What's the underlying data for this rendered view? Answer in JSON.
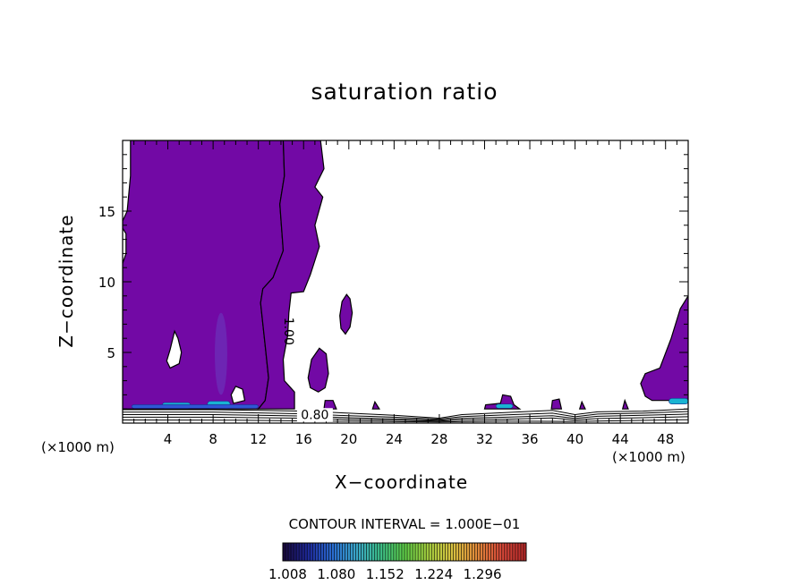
{
  "chart_data": {
    "type": "contour",
    "title": "saturation ratio",
    "xlabel": "X−coordinate",
    "ylabel": "Z−coordinate",
    "x_unit_left": "(×1000 m)",
    "x_unit_right": "(×1000 m)",
    "xlim": [
      0,
      50
    ],
    "ylim": [
      0,
      20
    ],
    "x_ticks": [
      4,
      8,
      12,
      16,
      20,
      24,
      28,
      32,
      36,
      40,
      44,
      48
    ],
    "x_tick_labels": [
      "4",
      "8",
      "12",
      "16",
      "20",
      "24",
      "28",
      "32",
      "36",
      "40",
      "44",
      "48"
    ],
    "y_ticks": [
      5,
      10,
      15
    ],
    "y_tick_labels": [
      "5",
      "10",
      "15"
    ],
    "contour_labels": [
      {
        "text": "1.00",
        "x": 14.3,
        "z": 6.5,
        "rotate": 90
      },
      {
        "text": "0.80",
        "x": 17.0,
        "z": 0.3,
        "rotate": 0
      }
    ],
    "contour_interval_text": "CONTOUR INTERVAL = 1.000E−01",
    "colorbar": {
      "min": 1.0,
      "max": 1.32,
      "tick_labels": [
        "1.008",
        "1.080",
        "1.152",
        "1.224",
        "1.296"
      ],
      "colors": [
        "#1a0a40",
        "#1f2a9c",
        "#2a6cd0",
        "#3aa6c8",
        "#3cc08a",
        "#5fcf48",
        "#a8d040",
        "#d8c040",
        "#e08a3a",
        "#d84a3a",
        "#b82a2a"
      ]
    },
    "fill_colors": {
      "supersaturated": "#7209a5",
      "low_level_peak": "#19b4d2",
      "low_level_mid": "#2f57d4",
      "background": "#ffffff"
    },
    "regions": [
      {
        "name": "left-column",
        "points": [
          [
            0.7,
            20
          ],
          [
            14.2,
            20
          ],
          [
            14.3,
            17.5
          ],
          [
            13.9,
            15.5
          ],
          [
            14.2,
            12.2
          ],
          [
            13.3,
            10.3
          ],
          [
            12.4,
            9.5
          ],
          [
            12.2,
            8.5
          ],
          [
            12.6,
            5.5
          ],
          [
            12.9,
            3.2
          ],
          [
            12.6,
            1.6
          ],
          [
            12.0,
            1.0
          ],
          [
            0,
            1.0
          ],
          [
            0,
            14.3
          ],
          [
            0.4,
            15.0
          ],
          [
            0.7,
            17.5
          ]
        ]
      },
      {
        "name": "right-of-column",
        "points": [
          [
            14.2,
            20
          ],
          [
            14.3,
            17.5
          ],
          [
            13.9,
            15.5
          ],
          [
            14.2,
            12.2
          ],
          [
            13.3,
            10.3
          ],
          [
            12.4,
            9.5
          ],
          [
            12.2,
            8.5
          ],
          [
            12.6,
            5.5
          ],
          [
            12.9,
            3.2
          ],
          [
            12.6,
            1.6
          ],
          [
            12.0,
            1.0
          ],
          [
            15.2,
            1.0
          ],
          [
            15.2,
            2.2
          ],
          [
            14.3,
            3.0
          ],
          [
            14.2,
            4.5
          ],
          [
            14.6,
            6.2
          ],
          [
            14.7,
            7.8
          ],
          [
            14.9,
            9.2
          ],
          [
            16.0,
            9.3
          ],
          [
            16.6,
            10.5
          ],
          [
            17.4,
            12.5
          ],
          [
            17.0,
            14.0
          ],
          [
            17.7,
            16.0
          ],
          [
            17.0,
            16.7
          ],
          [
            17.8,
            18.0
          ],
          [
            17.5,
            20
          ]
        ]
      },
      {
        "name": "blob-18",
        "points": [
          [
            19.8,
            9.1
          ],
          [
            19.4,
            8.6
          ],
          [
            19.2,
            7.6
          ],
          [
            19.3,
            6.7
          ],
          [
            19.7,
            6.3
          ],
          [
            20.1,
            6.8
          ],
          [
            20.3,
            7.8
          ],
          [
            20.1,
            8.8
          ]
        ]
      },
      {
        "name": "blob-17",
        "points": [
          [
            16.6,
            2.5
          ],
          [
            16.4,
            3.2
          ],
          [
            16.7,
            4.5
          ],
          [
            17.4,
            5.3
          ],
          [
            18.0,
            4.9
          ],
          [
            18.2,
            3.5
          ],
          [
            17.9,
            2.5
          ],
          [
            17.3,
            2.2
          ]
        ]
      },
      {
        "name": "right-edge",
        "points": [
          [
            50,
            9.0
          ],
          [
            49.3,
            8.1
          ],
          [
            48.5,
            6.0
          ],
          [
            47.5,
            3.9
          ],
          [
            46.2,
            3.5
          ],
          [
            45.8,
            2.8
          ],
          [
            46.2,
            1.9
          ],
          [
            46.8,
            1.6
          ],
          [
            50,
            1.6
          ]
        ]
      },
      {
        "name": "bump-33",
        "points": [
          [
            32.0,
            1.0
          ],
          [
            32.1,
            1.3
          ],
          [
            33.4,
            1.4
          ],
          [
            33.6,
            2.0
          ],
          [
            34.3,
            1.9
          ],
          [
            34.6,
            1.3
          ],
          [
            35.1,
            1.0
          ]
        ]
      },
      {
        "name": "bump-18",
        "points": [
          [
            17.8,
            1.0
          ],
          [
            17.9,
            1.6
          ],
          [
            18.6,
            1.6
          ],
          [
            18.9,
            1.0
          ]
        ]
      },
      {
        "name": "bump-38",
        "points": [
          [
            37.9,
            1.0
          ],
          [
            38.0,
            1.6
          ],
          [
            38.6,
            1.7
          ],
          [
            38.8,
            1.0
          ]
        ]
      },
      {
        "name": "bump-22",
        "points": [
          [
            22.1,
            1.0
          ],
          [
            22.3,
            1.5
          ],
          [
            22.7,
            1.0
          ]
        ]
      },
      {
        "name": "bump-40",
        "points": [
          [
            40.4,
            1.0
          ],
          [
            40.6,
            1.5
          ],
          [
            40.9,
            1.0
          ]
        ]
      },
      {
        "name": "bump-44",
        "points": [
          [
            44.2,
            1.0
          ],
          [
            44.4,
            1.6
          ],
          [
            44.7,
            1.0
          ]
        ]
      }
    ],
    "holes": [
      {
        "name": "hole-near-x4",
        "points": [
          [
            4.6,
            6.5
          ],
          [
            4.2,
            5.2
          ],
          [
            3.9,
            4.4
          ],
          [
            4.2,
            3.9
          ],
          [
            5.0,
            4.2
          ],
          [
            5.2,
            5.0
          ],
          [
            4.9,
            6.0
          ]
        ]
      },
      {
        "name": "hole-near-x10",
        "points": [
          [
            9.6,
            2.0
          ],
          [
            10.0,
            2.6
          ],
          [
            10.6,
            2.4
          ],
          [
            10.8,
            1.6
          ],
          [
            9.8,
            1.4
          ]
        ]
      },
      {
        "name": "hole-left-edge",
        "points": [
          [
            0,
            11.3
          ],
          [
            0.3,
            12.0
          ],
          [
            0.3,
            13.4
          ],
          [
            0,
            13.8
          ]
        ]
      }
    ],
    "low_level_bands": [
      {
        "x0": 3.5,
        "x1": 6.0,
        "z0": 1.05,
        "z1": 1.45,
        "level": "peak"
      },
      {
        "x0": 7.5,
        "x1": 9.5,
        "z0": 1.05,
        "z1": 1.55,
        "level": "peak"
      },
      {
        "x0": 0.8,
        "x1": 12.0,
        "z0": 1.05,
        "z1": 1.3,
        "level": "mid"
      },
      {
        "x0": 33.0,
        "x1": 34.5,
        "z0": 1.05,
        "z1": 1.35,
        "level": "peak"
      },
      {
        "x0": 48.3,
        "x1": 50.0,
        "z0": 1.35,
        "z1": 1.75,
        "level": "peak"
      }
    ],
    "faint_plume": {
      "x": 8.7,
      "z0": 2.0,
      "z1": 7.8,
      "half_width": 0.55
    },
    "contour_lines_near_ground": [
      {
        "name": "iso-1",
        "points": [
          [
            0,
            0.95
          ],
          [
            8,
            0.95
          ],
          [
            12,
            0.9
          ],
          [
            16,
            0.85
          ],
          [
            20,
            0.7
          ],
          [
            24,
            0.55
          ],
          [
            28,
            0.35
          ],
          [
            30,
            0.6
          ],
          [
            34,
            0.75
          ],
          [
            38,
            0.9
          ],
          [
            40,
            0.6
          ],
          [
            42,
            0.8
          ],
          [
            46,
            0.85
          ],
          [
            50,
            1.0
          ]
        ]
      },
      {
        "name": "iso-2",
        "points": [
          [
            0,
            0.78
          ],
          [
            8,
            0.78
          ],
          [
            12,
            0.72
          ],
          [
            16,
            0.66
          ],
          [
            20,
            0.52
          ],
          [
            24,
            0.42
          ],
          [
            28,
            0.28
          ],
          [
            30,
            0.46
          ],
          [
            34,
            0.58
          ],
          [
            38,
            0.7
          ],
          [
            40,
            0.45
          ],
          [
            42,
            0.64
          ],
          [
            46,
            0.7
          ],
          [
            50,
            0.82
          ]
        ]
      },
      {
        "name": "iso-3",
        "points": [
          [
            0,
            0.6
          ],
          [
            8,
            0.6
          ],
          [
            12,
            0.55
          ],
          [
            16,
            0.5
          ],
          [
            20,
            0.38
          ],
          [
            24,
            0.3
          ],
          [
            28,
            0.2
          ],
          [
            30,
            0.34
          ],
          [
            34,
            0.42
          ],
          [
            38,
            0.52
          ],
          [
            40,
            0.33
          ],
          [
            42,
            0.48
          ],
          [
            46,
            0.55
          ],
          [
            50,
            0.64
          ]
        ]
      },
      {
        "name": "iso-4",
        "points": [
          [
            0,
            0.42
          ],
          [
            8,
            0.42
          ],
          [
            12,
            0.38
          ],
          [
            16,
            0.35
          ],
          [
            20,
            0.26
          ],
          [
            24,
            0.2
          ],
          [
            28,
            0.14
          ],
          [
            30,
            0.22
          ],
          [
            34,
            0.28
          ],
          [
            38,
            0.36
          ],
          [
            40,
            0.22
          ],
          [
            42,
            0.32
          ],
          [
            46,
            0.38
          ],
          [
            50,
            0.45
          ]
        ]
      },
      {
        "name": "iso-5",
        "points": [
          [
            0,
            0.22
          ],
          [
            10,
            0.2
          ],
          [
            20,
            0.13
          ],
          [
            28,
            0.08
          ],
          [
            34,
            0.14
          ],
          [
            40,
            0.12
          ],
          [
            50,
            0.24
          ]
        ]
      }
    ]
  }
}
